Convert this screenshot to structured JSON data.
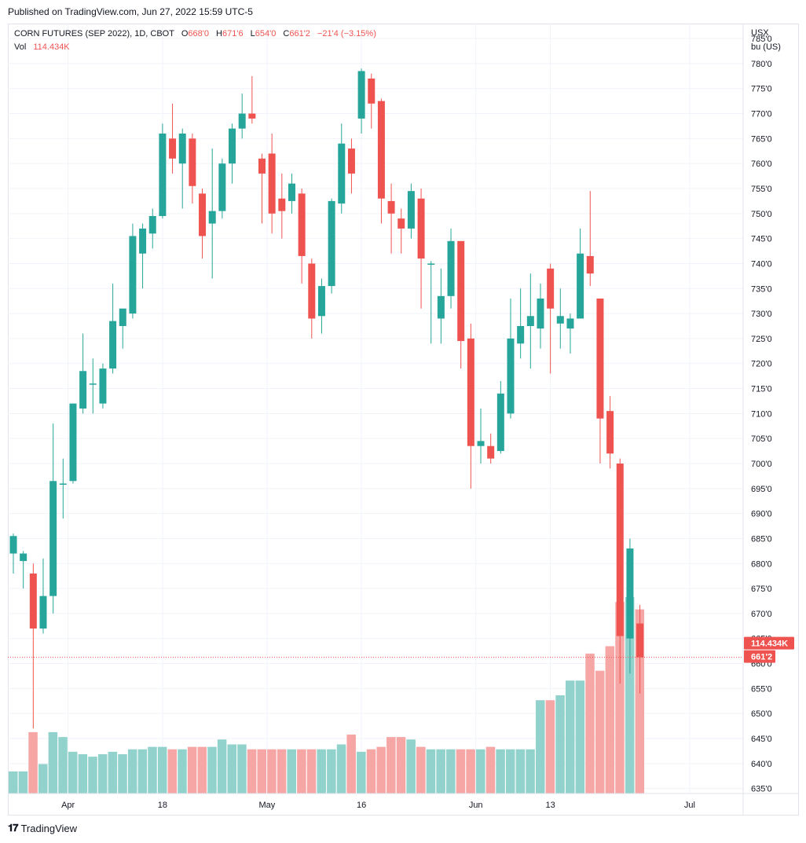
{
  "header": {
    "published": "Published on TradingView.com, Jun 27, 2022 15:59 UTC-5"
  },
  "legend": {
    "symbol": "CORN FUTURES (SEP 2022), 1D, CBOT",
    "o_label": "O",
    "o_value": "668'0",
    "h_label": "H",
    "h_value": "671'6",
    "l_label": "L",
    "l_value": "654'0",
    "c_label": "C",
    "c_value": "661'2",
    "change": "−21'4 (−3.15%)",
    "vol_label": "Vol",
    "vol_value": "114.434K"
  },
  "axis": {
    "currency": "USX",
    "unit": "bu (US)"
  },
  "price_badge": "661'2",
  "volume_badge": "114.434K",
  "footer": {
    "brand": "TradingView"
  },
  "colors": {
    "up": "#26a69a",
    "down": "#ef5350",
    "up_vol": "#92d2cc",
    "down_vol": "#f5a6a5"
  },
  "chart_data": {
    "type": "candlestick",
    "title": "CORN FUTURES (SEP 2022), 1D, CBOT",
    "ylim": [
      634,
      788
    ],
    "y_ticks": [
      "635'0",
      "640'0",
      "645'0",
      "650'0",
      "655'0",
      "660'0",
      "665'0",
      "670'0",
      "675'0",
      "680'0",
      "685'0",
      "690'0",
      "695'0",
      "700'0",
      "705'0",
      "710'0",
      "715'0",
      "720'0",
      "725'0",
      "730'0",
      "735'0",
      "740'0",
      "745'0",
      "750'0",
      "755'0",
      "760'0",
      "765'0",
      "770'0",
      "775'0",
      "780'0",
      "785'0"
    ],
    "x_labels": [
      {
        "label": "Apr",
        "index": 5.5
      },
      {
        "label": "18",
        "index": 15
      },
      {
        "label": "May",
        "index": 25.5
      },
      {
        "label": "16",
        "index": 35
      },
      {
        "label": "Jun",
        "index": 46.5
      },
      {
        "label": "13",
        "index": 54
      },
      {
        "label": "Jul",
        "index": 68
      }
    ],
    "candles": [
      {
        "o": 682,
        "h": 686,
        "l": 678,
        "c": 685.5,
        "v": "up"
      },
      {
        "o": 680.5,
        "h": 682.5,
        "l": 675,
        "c": 682,
        "v": "up"
      },
      {
        "o": 678,
        "h": 680,
        "l": 647,
        "c": 667,
        "v": "down"
      },
      {
        "o": 667,
        "h": 681,
        "l": 666,
        "c": 673.5,
        "v": "up"
      },
      {
        "o": 673.5,
        "h": 708,
        "l": 670,
        "c": 696.5,
        "v": "up"
      },
      {
        "o": 696,
        "h": 701,
        "l": 689,
        "c": 696,
        "v": "up"
      },
      {
        "o": 696.5,
        "h": 712,
        "l": 696,
        "c": 712,
        "v": "up"
      },
      {
        "o": 711,
        "h": 726,
        "l": 710,
        "c": 718.5,
        "v": "up"
      },
      {
        "o": 716,
        "h": 721,
        "l": 710,
        "c": 716,
        "v": "down"
      },
      {
        "o": 712,
        "h": 720,
        "l": 711,
        "c": 719,
        "v": "up"
      },
      {
        "o": 719,
        "h": 736,
        "l": 718,
        "c": 728.5,
        "v": "up"
      },
      {
        "o": 727.5,
        "h": 730,
        "l": 723,
        "c": 731,
        "v": "up"
      },
      {
        "o": 730,
        "h": 748,
        "l": 729,
        "c": 745.5,
        "v": "up"
      },
      {
        "o": 742,
        "h": 748,
        "l": 735,
        "c": 747,
        "v": "up"
      },
      {
        "o": 746,
        "h": 751,
        "l": 743,
        "c": 749.5,
        "v": "up"
      },
      {
        "o": 749.5,
        "h": 768,
        "l": 749,
        "c": 766,
        "v": "up"
      },
      {
        "o": 765,
        "h": 772,
        "l": 758,
        "c": 761,
        "v": "down"
      },
      {
        "o": 760,
        "h": 767,
        "l": 751,
        "c": 766,
        "v": "up"
      },
      {
        "o": 765,
        "h": 766,
        "l": 752,
        "c": 755.5,
        "v": "down"
      },
      {
        "o": 754,
        "h": 755,
        "l": 741,
        "c": 745.5,
        "v": "down"
      },
      {
        "o": 748,
        "h": 763,
        "l": 737,
        "c": 750.5,
        "v": "up"
      },
      {
        "o": 750.5,
        "h": 761,
        "l": 749,
        "c": 760,
        "v": "up"
      },
      {
        "o": 760,
        "h": 768,
        "l": 756,
        "c": 767,
        "v": "up"
      },
      {
        "o": 767,
        "h": 774,
        "l": 765,
        "c": 770,
        "v": "up"
      },
      {
        "o": 770,
        "h": 777.5,
        "l": 768,
        "c": 769,
        "v": "down"
      },
      {
        "o": 761,
        "h": 762,
        "l": 748,
        "c": 758,
        "v": "down"
      },
      {
        "o": 762,
        "h": 766,
        "l": 746,
        "c": 750,
        "v": "down"
      },
      {
        "o": 753,
        "h": 758,
        "l": 745,
        "c": 750.5,
        "v": "up"
      },
      {
        "o": 752.5,
        "h": 758,
        "l": 750,
        "c": 756,
        "v": "up"
      },
      {
        "o": 754,
        "h": 755,
        "l": 736,
        "c": 741.5,
        "v": "down"
      },
      {
        "o": 740,
        "h": 741,
        "l": 725,
        "c": 729,
        "v": "down"
      },
      {
        "o": 729.5,
        "h": 737,
        "l": 726,
        "c": 735.5,
        "v": "up"
      },
      {
        "o": 735.5,
        "h": 753,
        "l": 734,
        "c": 752.5,
        "v": "up"
      },
      {
        "o": 752,
        "h": 768,
        "l": 750,
        "c": 764,
        "v": "up"
      },
      {
        "o": 763,
        "h": 765,
        "l": 754,
        "c": 758,
        "v": "down"
      },
      {
        "o": 769,
        "h": 779,
        "l": 766,
        "c": 778.5,
        "v": "up"
      },
      {
        "o": 777,
        "h": 778,
        "l": 767,
        "c": 772,
        "v": "down"
      },
      {
        "o": 772.5,
        "h": 773,
        "l": 748,
        "c": 753,
        "v": "down"
      },
      {
        "o": 752.5,
        "h": 756,
        "l": 742,
        "c": 750,
        "v": "down"
      },
      {
        "o": 749,
        "h": 751,
        "l": 742,
        "c": 747,
        "v": "down"
      },
      {
        "o": 747,
        "h": 756,
        "l": 745,
        "c": 754.5,
        "v": "up"
      },
      {
        "o": 753,
        "h": 755,
        "l": 731,
        "c": 741,
        "v": "down"
      },
      {
        "o": 740,
        "h": 740.5,
        "l": 724,
        "c": 740,
        "v": "down"
      },
      {
        "o": 729,
        "h": 739,
        "l": 724,
        "c": 733.5,
        "v": "up"
      },
      {
        "o": 733.5,
        "h": 747,
        "l": 731,
        "c": 744.5,
        "v": "up"
      },
      {
        "o": 744.5,
        "h": 744.5,
        "l": 719,
        "c": 724.5,
        "v": "down"
      },
      {
        "o": 725,
        "h": 728,
        "l": 695,
        "c": 703.5,
        "v": "down"
      },
      {
        "o": 703.5,
        "h": 711,
        "l": 700,
        "c": 704.5,
        "v": "up"
      },
      {
        "o": 703.5,
        "h": 706,
        "l": 700,
        "c": 701,
        "v": "down"
      },
      {
        "o": 702.5,
        "h": 716.5,
        "l": 702,
        "c": 714,
        "v": "up"
      },
      {
        "o": 710,
        "h": 733,
        "l": 709,
        "c": 725,
        "v": "up"
      },
      {
        "o": 724,
        "h": 735,
        "l": 721,
        "c": 727.5,
        "v": "up"
      },
      {
        "o": 727.5,
        "h": 738,
        "l": 719,
        "c": 729.5,
        "v": "up"
      },
      {
        "o": 727,
        "h": 736,
        "l": 723,
        "c": 733,
        "v": "up"
      },
      {
        "o": 739,
        "h": 740,
        "l": 718,
        "c": 731,
        "v": "down"
      },
      {
        "o": 728,
        "h": 735,
        "l": 723,
        "c": 729.5,
        "v": "up"
      },
      {
        "o": 727,
        "h": 730,
        "l": 722,
        "c": 729,
        "v": "up"
      },
      {
        "o": 729,
        "h": 747,
        "l": 729,
        "c": 742,
        "v": "up"
      },
      {
        "o": 741.5,
        "h": 754.5,
        "l": 735.5,
        "c": 738,
        "v": "down"
      },
      {
        "o": 733,
        "h": 733,
        "l": 700,
        "c": 709,
        "v": "down"
      },
      {
        "o": 710.5,
        "h": 713.5,
        "l": 699,
        "c": 702,
        "v": "down"
      },
      {
        "o": 700,
        "h": 701,
        "l": 656,
        "c": 665.5,
        "v": "down"
      },
      {
        "o": 665,
        "h": 685,
        "l": 658,
        "c": 683,
        "v": "up"
      },
      {
        "o": 668,
        "h": 671.75,
        "l": 654,
        "c": 661.25,
        "v": "down"
      }
    ],
    "volume": [
      9,
      9,
      25,
      12,
      25,
      23,
      17,
      16,
      15,
      16,
      17,
      16,
      18,
      18,
      19,
      19,
      18,
      18,
      19,
      19,
      19,
      22,
      20,
      20,
      18,
      18,
      18,
      18,
      18,
      18,
      18,
      18,
      18,
      20,
      24,
      17,
      18,
      19,
      23,
      23,
      22,
      19,
      18,
      18,
      18,
      18,
      18,
      18,
      19,
      18,
      18,
      18,
      18,
      38,
      38,
      40,
      46,
      46,
      57,
      50,
      60,
      78,
      80,
      75
    ]
  }
}
